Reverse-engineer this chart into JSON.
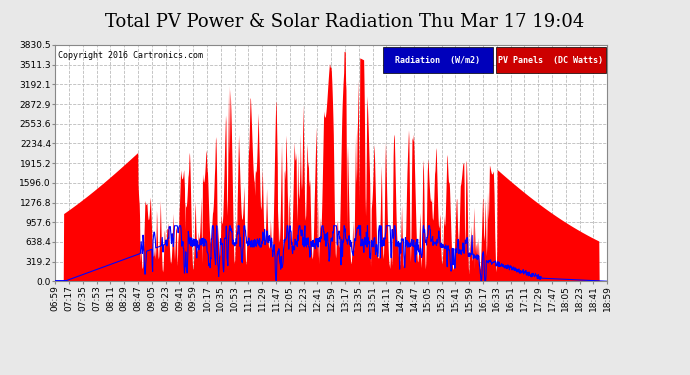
{
  "title": "Total PV Power & Solar Radiation Thu Mar 17 19:04",
  "copyright": "Copyright 2016 Cartronics.com",
  "legend_items": [
    {
      "label": "Radiation  (W/m2)",
      "bg_color": "#0000bb",
      "text_color": "#ffffff"
    },
    {
      "label": "PV Panels  (DC Watts)",
      "bg_color": "#cc0000",
      "text_color": "#ffffff"
    }
  ],
  "y_ticks": [
    0.0,
    319.2,
    638.4,
    957.6,
    1276.8,
    1596.0,
    1915.2,
    2234.4,
    2553.6,
    2872.9,
    3192.1,
    3511.3,
    3830.5
  ],
  "y_max": 3830.5,
  "x_labels": [
    "06:59",
    "07:17",
    "07:35",
    "07:53",
    "08:11",
    "08:29",
    "08:47",
    "09:05",
    "09:23",
    "09:41",
    "09:59",
    "10:17",
    "10:35",
    "10:53",
    "11:11",
    "11:29",
    "11:47",
    "12:05",
    "12:23",
    "12:41",
    "12:59",
    "13:17",
    "13:35",
    "13:51",
    "14:11",
    "14:29",
    "14:47",
    "15:05",
    "15:23",
    "15:41",
    "15:59",
    "16:17",
    "16:33",
    "16:51",
    "17:11",
    "17:29",
    "17:47",
    "18:05",
    "18:23",
    "18:41",
    "18:59"
  ],
  "background_color": "#e8e8e8",
  "plot_bg_color": "#ffffff",
  "grid_color": "#bbbbbb",
  "pv_color": "#ff0000",
  "radiation_color": "#0000ff",
  "title_fontsize": 13,
  "tick_fontsize": 6.5
}
